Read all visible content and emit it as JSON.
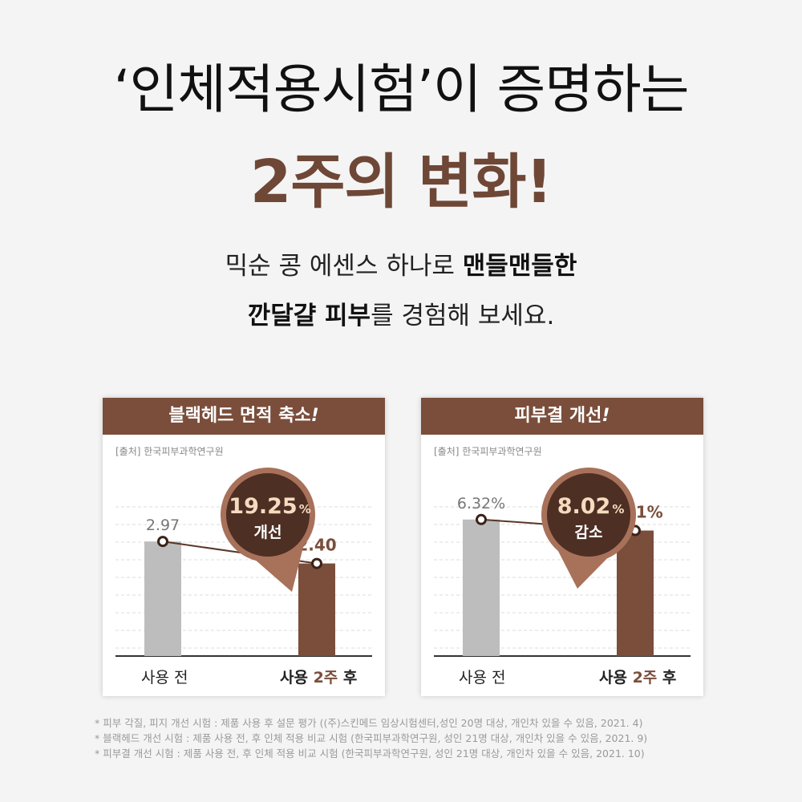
{
  "headline": {
    "line1": "‘인체적용시험’이 증명하는",
    "line2": "2주의 변화!"
  },
  "subtitle": {
    "line1_normal": "믹순 콩 에센스 하나로 ",
    "line1_bold": "맨들맨들한",
    "line2_bold": "깐달걀 피부",
    "line2_normal": "를 경험해 보세요."
  },
  "colors": {
    "brand": "#7a4e3b",
    "before_bar": "#bdbdbd",
    "after_bar": "#7a4e3b",
    "badge_dark": "#4e2f23",
    "badge_value": "#f5dcc0"
  },
  "cards": [
    {
      "header_main": "블랙헤드 면적 축소",
      "header_mark": "!",
      "source": "[출처] 한국피부과학연구원",
      "badge_value": "19.25",
      "badge_unit": "%",
      "badge_label": "개선",
      "label_before": "사용 전",
      "label_after_prefix": "사용 ",
      "label_after_highlight": "2주",
      "label_after_suffix": " 후"
    },
    {
      "header_main": "피부결 개선",
      "header_mark": "!",
      "source": "[출처] 한국피부과학연구원",
      "badge_value": "8.02",
      "badge_unit": "%",
      "badge_label": "감소",
      "label_before": "사용 전",
      "label_after_prefix": "사용 ",
      "label_after_highlight": "2주",
      "label_after_suffix": " 후"
    }
  ],
  "chart_data": [
    {
      "type": "bar",
      "title": "블랙헤드 면적 축소!",
      "categories": [
        "사용 전",
        "사용 2주 후"
      ],
      "values": [
        2.97,
        2.4
      ],
      "value_labels": [
        "2.97",
        "2.40"
      ],
      "ylim": [
        0,
        4.2
      ],
      "grid": true,
      "annotation": "19.25% 개선"
    },
    {
      "type": "bar",
      "title": "피부결 개선!",
      "categories": [
        "사용 전",
        "사용 2주 후"
      ],
      "values": [
        6.32,
        5.81
      ],
      "value_labels": [
        "6.32%",
        "5.81%"
      ],
      "ylim": [
        0,
        7.5
      ],
      "grid": true,
      "annotation": "8.02% 감소"
    }
  ],
  "footnotes": [
    "* 피부 각질, 피지 개선 시험 : 제품 사용 후  설문 평가 ((주)스킨메드 임상시험센터,성인 20명 대상, 개인차 있을 수 있음, 2021. 4)",
    "* 블랙헤드 개선 시험 : 제품 사용 전, 후 인체 적용 비교 시험 (한국피부과학연구원, 성인 21명 대상, 개인차 있을 수 있음, 2021. 9)",
    "* 피부결 개선 시험 :  제품 사용 전, 후 인체 적용 비교 시험 (한국피부과학연구원, 성인 21명 대상, 개인차 있을 수 있음, 2021. 10)"
  ]
}
